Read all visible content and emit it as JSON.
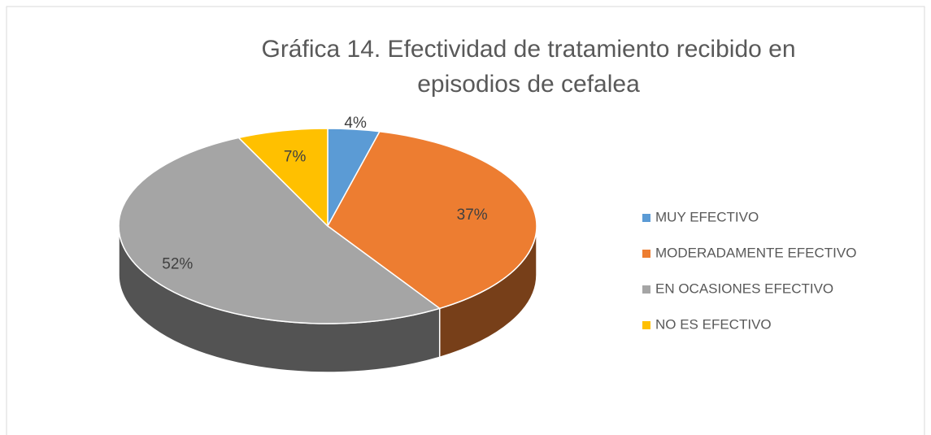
{
  "chart_data": {
    "type": "pie3d",
    "title": "Gráfica 14. Efectividad de tratamiento recibido en episodios de cefalea",
    "categories": [
      "MUY EFECTIVO",
      "MODERADAMENTE EFECTIVO",
      "EN OCASIONES EFECTIVO",
      "NO ES EFECTIVO"
    ],
    "values": [
      4,
      37,
      52,
      7
    ],
    "value_labels": [
      "4%",
      "37%",
      "52%",
      "7%"
    ],
    "colors": [
      "#5b9bd5",
      "#ed7d31",
      "#a5a5a5",
      "#ffc000"
    ],
    "legend": "right"
  }
}
